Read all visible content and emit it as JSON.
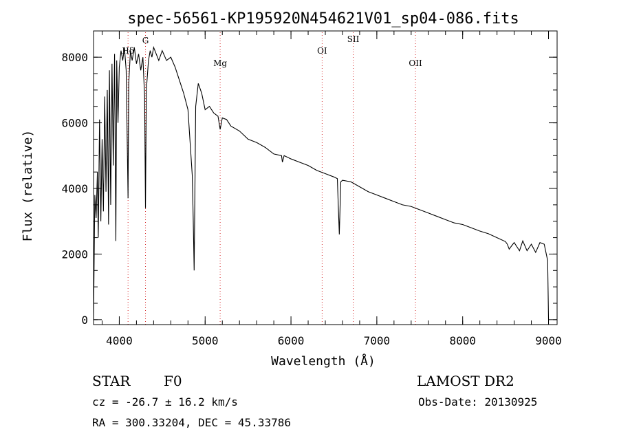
{
  "chart_data": {
    "type": "line",
    "title": "spec-56561-KP195920N454621V01_sp04-086.fits",
    "xlabel": "Wavelength (Å)",
    "ylabel": "Flux (relative)",
    "xlim": [
      3700,
      9100
    ],
    "ylim": [
      -150,
      8800
    ],
    "xticks": [
      4000,
      5000,
      6000,
      7000,
      8000,
      9000
    ],
    "yticks": [
      0,
      2000,
      4000,
      6000,
      8000
    ],
    "xtick_labels": [
      "4000",
      "5000",
      "6000",
      "7000",
      "8000",
      "9000"
    ],
    "ytick_labels": [
      "0",
      "2000",
      "4000",
      "6000",
      "8000"
    ],
    "lines": [
      {
        "label": "Hδ",
        "x": 4102
      },
      {
        "label": "G",
        "x": 4305
      },
      {
        "label": "Mg",
        "x": 5175
      },
      {
        "label": "OI",
        "x": 6363
      },
      {
        "label": "SII",
        "x": 6725
      },
      {
        "label": "OII",
        "x": 7450
      }
    ],
    "line_color": "#d62728",
    "series": [
      {
        "x": [
          3700,
          3715,
          3730,
          3745,
          3755,
          3770,
          3785,
          3800,
          3815,
          3830,
          3845,
          3860,
          3875,
          3885,
          3900,
          3915,
          3930,
          3945,
          3960,
          3970,
          3985,
          4000,
          4020,
          4040,
          4060,
          4080,
          4095,
          4102,
          4110,
          4130,
          4150,
          4175,
          4200,
          4225,
          4250,
          4275,
          4295,
          4305,
          4315,
          4340,
          4360,
          4380,
          4400,
          4430,
          4460,
          4500,
          4550,
          4600,
          4650,
          4700,
          4750,
          4800,
          4830,
          4850,
          4861,
          4872,
          4890,
          4920,
          4960,
          5000,
          5050,
          5100,
          5150,
          5175,
          5200,
          5250,
          5300,
          5400,
          5500,
          5600,
          5700,
          5800,
          5890,
          5900,
          5920,
          6000,
          6100,
          6200,
          6300,
          6400,
          6500,
          6540,
          6563,
          6580,
          6600,
          6700,
          6800,
          6900,
          7000,
          7100,
          7200,
          7300,
          7400,
          7500,
          7600,
          7700,
          7800,
          7900,
          8000,
          8100,
          8200,
          8300,
          8400,
          8498,
          8520,
          8542,
          8570,
          8600,
          8662,
          8700,
          8750,
          8800,
          8850,
          8900,
          8950,
          8990,
          9000
        ],
        "y": [
          0,
          3800,
          3100,
          4500,
          2500,
          6100,
          3000,
          5500,
          3300,
          6800,
          3900,
          7000,
          2900,
          7600,
          3500,
          7800,
          4700,
          8100,
          2400,
          7900,
          6000,
          7700,
          8200,
          7900,
          8300,
          7600,
          5000,
          3700,
          7200,
          8200,
          7900,
          8300,
          7800,
          8100,
          7600,
          8000,
          6800,
          3400,
          7000,
          7900,
          8200,
          8000,
          8300,
          8100,
          7900,
          8200,
          7900,
          8000,
          7700,
          7300,
          6900,
          6400,
          5200,
          4400,
          3100,
          1500,
          6500,
          7200,
          6900,
          6400,
          6500,
          6300,
          6200,
          5800,
          6150,
          6100,
          5900,
          5750,
          5500,
          5400,
          5250,
          5050,
          5000,
          4800,
          5000,
          4900,
          4800,
          4700,
          4550,
          4450,
          4350,
          4300,
          2600,
          4200,
          4250,
          4200,
          4050,
          3900,
          3800,
          3700,
          3600,
          3500,
          3450,
          3350,
          3250,
          3150,
          3050,
          2950,
          2900,
          2800,
          2700,
          2620,
          2500,
          2380,
          2300,
          2150,
          2250,
          2350,
          2100,
          2400,
          2100,
          2300,
          2050,
          2350,
          2300,
          1800,
          0
        ]
      }
    ]
  },
  "footer": {
    "object_type": "STAR",
    "spectral_class": "F0",
    "survey": "LAMOST DR2",
    "redshift": "cz = -26.7 ± 16.2 km/s",
    "obs_date": "Obs-Date: 20130925",
    "coords": "RA = 300.33204, DEC =  45.33786"
  }
}
